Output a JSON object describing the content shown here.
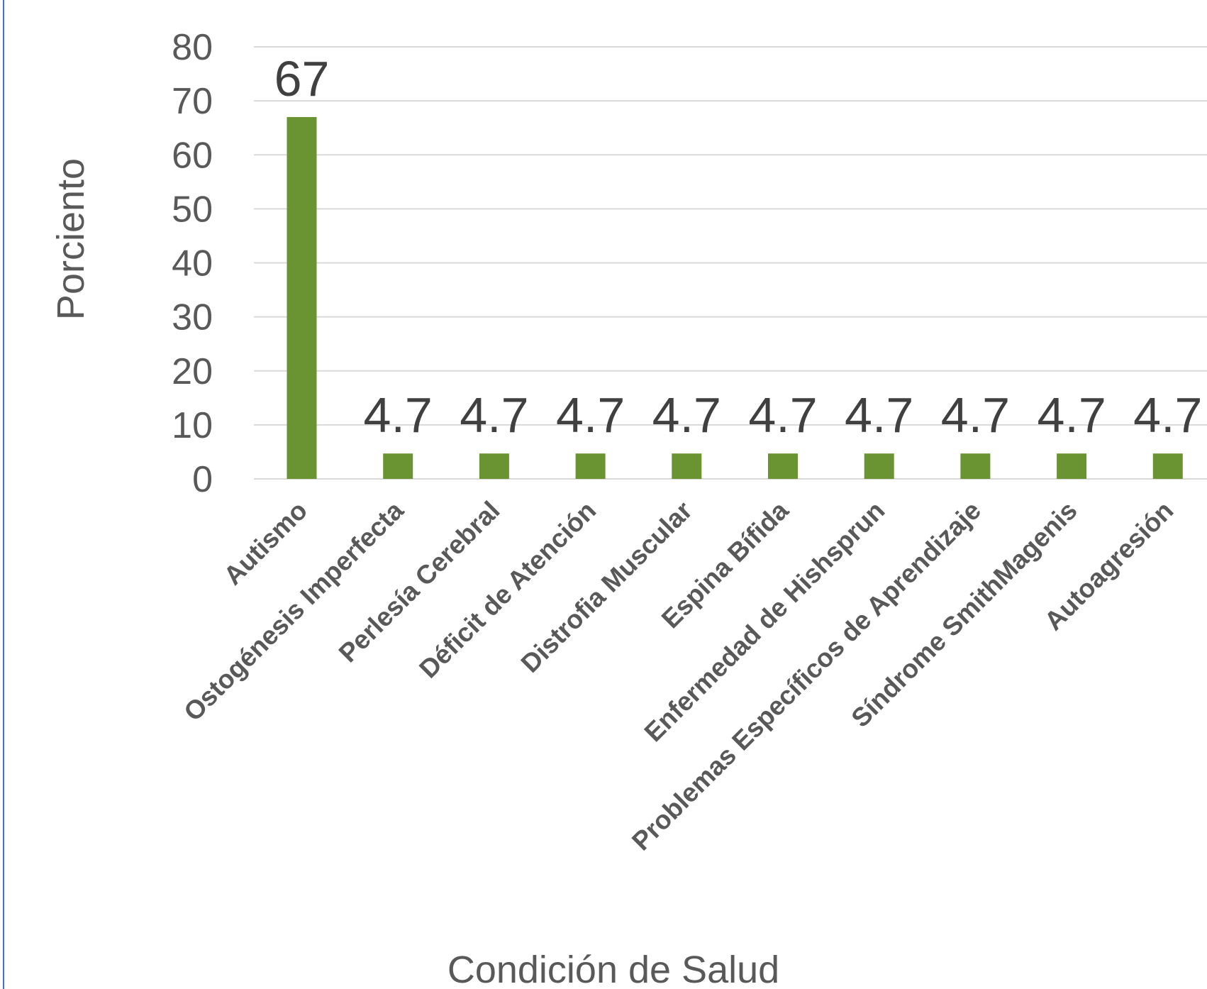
{
  "chart_data": {
    "type": "bar",
    "categories": [
      "Autismo",
      "Ostogénesis Imperfecta",
      "Perlesía Cerebral",
      "Déficit de Atención",
      "Distrofia Muscular",
      "Espina Bífida",
      "Enfermedad de Hishsprun",
      "Problemas Específicos de Aprendizaje",
      "Síndrome SmithMagenis",
      "Autoagresión"
    ],
    "values": [
      67,
      4.7,
      4.7,
      4.7,
      4.7,
      4.7,
      4.7,
      4.7,
      4.7,
      4.7
    ],
    "color": "#6a9331",
    "ylim": [
      0,
      80
    ],
    "yticks": [
      0,
      10,
      20,
      30,
      40,
      50,
      60,
      70,
      80
    ],
    "grid": true,
    "y_label": "Porciento",
    "x_label": "Condición de Salud"
  }
}
